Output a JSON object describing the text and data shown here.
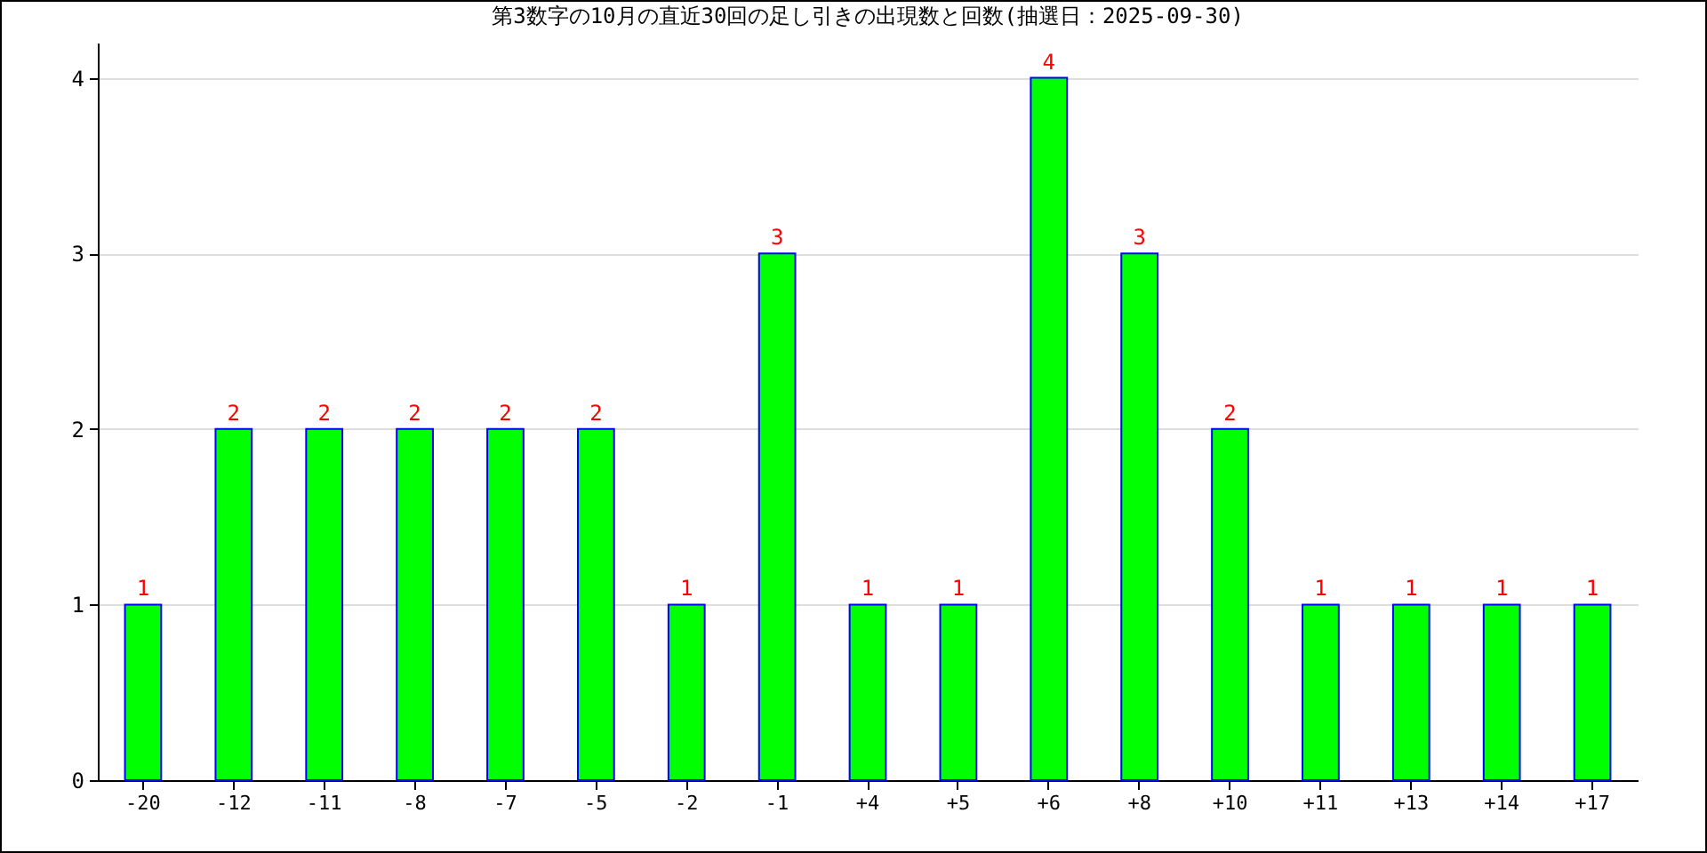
{
  "chart_data": {
    "type": "bar",
    "title": "第3数字の10月の直近30回の足し引きの出現数と回数(抽選日：2025-09-30)",
    "categories": [
      "-20",
      "-12",
      "-11",
      "-8",
      "-7",
      "-5",
      "-2",
      "-1",
      "+4",
      "+5",
      "+6",
      "+8",
      "+10",
      "+11",
      "+13",
      "+14",
      "+17"
    ],
    "values": [
      1,
      2,
      2,
      2,
      2,
      2,
      1,
      3,
      1,
      1,
      4,
      3,
      2,
      1,
      1,
      1,
      1
    ],
    "color": "#00ff00",
    "ylim": [
      0,
      4.2
    ],
    "yticks": [
      0,
      1,
      2,
      3,
      4
    ],
    "grid": "y",
    "data_labels": true
  }
}
